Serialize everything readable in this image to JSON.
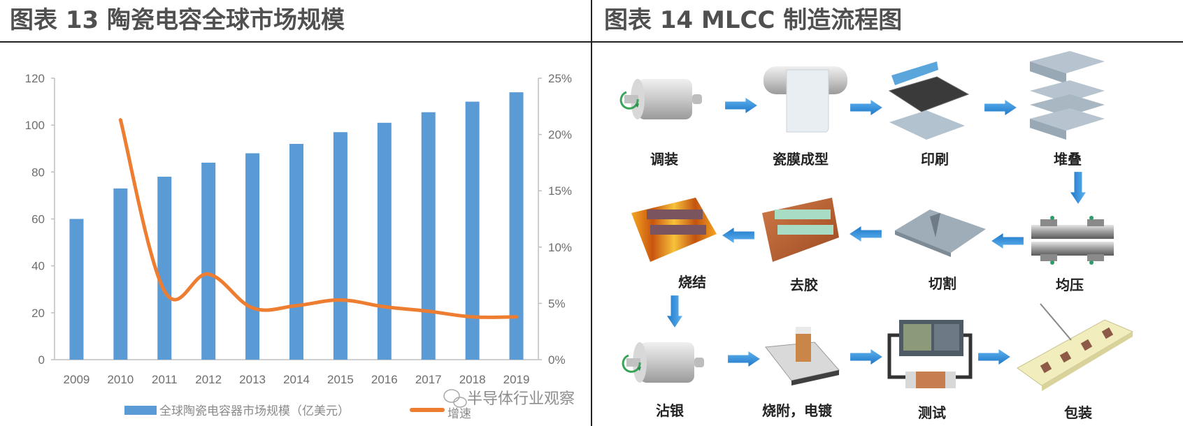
{
  "left_panel": {
    "title": "图表 13 陶瓷电容全球市场规模"
  },
  "right_panel": {
    "title": "图表 14 MLCC 制造流程图",
    "steps": [
      {
        "label": "调装",
        "icon": "ball-mill-drum"
      },
      {
        "label": "瓷膜成型",
        "icon": "tape-casting-roll"
      },
      {
        "label": "印刷",
        "icon": "screen-printing"
      },
      {
        "label": "堆叠",
        "icon": "layer-stacking"
      },
      {
        "label": "均压",
        "icon": "isostatic-press"
      },
      {
        "label": "切割",
        "icon": "cutting-sheet"
      },
      {
        "label": "去胶",
        "icon": "binder-burnout-tray"
      },
      {
        "label": "烧结",
        "icon": "sintering-tray"
      },
      {
        "label": "沾银",
        "icon": "silver-dipping-drum"
      },
      {
        "label": "烧附，电镀",
        "icon": "termination-plating"
      },
      {
        "label": "测试",
        "icon": "test-instrument"
      },
      {
        "label": "包装",
        "icon": "tape-reel-packaging"
      }
    ],
    "arrow_color": "#2f8fd8"
  },
  "watermark": "半导体行业观察",
  "colors": {
    "bar": "#5b9bd5",
    "line": "#ed7d31",
    "axis": "#bfbfbf",
    "title": "#505050",
    "border": "#222222"
  },
  "chart_data": {
    "type": "bar",
    "title": "图表 13 陶瓷电容全球市场规模",
    "categories": [
      "2009",
      "2010",
      "2011",
      "2012",
      "2013",
      "2014",
      "2015",
      "2016",
      "2017",
      "2018",
      "2019"
    ],
    "series": [
      {
        "name": "全球陶瓷电容器市场规模（亿美元）",
        "type": "bar",
        "axis": "left",
        "values": [
          60,
          73,
          78,
          84,
          88,
          92,
          97,
          101,
          105.5,
          110,
          114
        ]
      },
      {
        "name": "增速",
        "type": "line",
        "axis": "right",
        "values": [
          null,
          21.3,
          6.1,
          7.6,
          4.6,
          4.8,
          5.3,
          4.7,
          4.3,
          3.8,
          3.8
        ]
      }
    ],
    "y_left": {
      "min": 0,
      "max": 120,
      "ticks": [
        "0",
        "20",
        "40",
        "60",
        "80",
        "100",
        "120"
      ]
    },
    "y_right": {
      "min": 0,
      "max": 25,
      "ticks": [
        "0%",
        "5%",
        "10%",
        "15%",
        "20%",
        "25%"
      ]
    },
    "xlabel": "",
    "ylabel": "",
    "grid": false,
    "legend_position": "bottom",
    "legend": [
      "全球陶瓷电容器市场规模（亿美元）",
      "增速"
    ]
  }
}
